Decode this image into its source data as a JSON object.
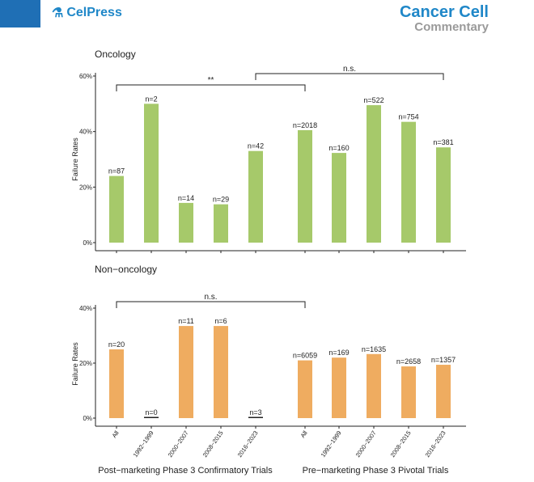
{
  "header": {
    "publisher": "CelPress",
    "journal": "Cancer Cell",
    "section": "Commentary",
    "icons": {
      "publisher_mark": "cellpress-logo-icon"
    },
    "colors": {
      "accent": "#1f87c8",
      "corner": "#1f6fb5"
    }
  },
  "chart_data": [
    {
      "type": "bar",
      "title": "Oncology",
      "ylabel": "Failure Rates",
      "ylim": [
        0,
        60
      ],
      "yticks": [
        "0%",
        "20%",
        "40%",
        "60%"
      ],
      "color": "#a6c96a",
      "groups": [
        "Post-marketing Phase 3 Confirmatory Trials",
        "Pre-marketing Phase 3 Pivotal Trials"
      ],
      "categories": [
        "All",
        "1992-1999",
        "2000-2007",
        "2008-2015",
        "2016-2023",
        "All",
        "1992-1999",
        "2000-2007",
        "2008-2015",
        "2016-2023"
      ],
      "values": [
        24,
        50,
        14.3,
        13.8,
        33,
        40.5,
        32.3,
        49.5,
        43.5,
        34.3
      ],
      "labels": [
        "n=87",
        "n=2",
        "n=14",
        "n=29",
        "n=42",
        "n=2018",
        "n=160",
        "n=522",
        "n=754",
        "n=381"
      ],
      "significance": [
        {
          "from": 0,
          "to": 5,
          "label": "**"
        },
        {
          "from": 4,
          "to": 9,
          "label": "n.s."
        }
      ]
    },
    {
      "type": "bar",
      "title": "Non-oncology",
      "ylabel": "Failure Rates",
      "ylim": [
        0,
        40
      ],
      "yticks": [
        "0%",
        "20%",
        "40%"
      ],
      "color": "#efac60",
      "groups": [
        "Post-marketing Phase 3 Confirmatory Trials",
        "Pre-marketing Phase 3 Pivotal Trials"
      ],
      "categories": [
        "All",
        "1992-1999",
        "2000-2007",
        "2008-2015",
        "2016-2023",
        "All",
        "1992-1999",
        "2000-2007",
        "2008-2015",
        "2016-2023"
      ],
      "values": [
        25,
        0,
        33.5,
        33.5,
        0,
        21,
        22,
        23.3,
        18.8,
        19.4
      ],
      "labels": [
        "n=20",
        "n=0",
        "n=11",
        "n=6",
        "n=3",
        "n=6059",
        "n=169",
        "n=1635",
        "n=2658",
        "n=1357"
      ],
      "significance": [
        {
          "from": 0,
          "to": 5,
          "label": "n.s."
        }
      ]
    }
  ],
  "xaxis": {
    "categories": [
      "All",
      "1992−1999",
      "2000−2007",
      "2008−2015",
      "2016−2023",
      "All",
      "1992−1999",
      "2000−2007",
      "2008−2015",
      "2016−2023"
    ],
    "group_labels": [
      "Post−marketing Phase 3 Confirmatory Trials",
      "Pre−marketing Phase 3 Pivotal Trials"
    ],
    "panel_titles": [
      "Oncology",
      "Non−oncology"
    ]
  }
}
